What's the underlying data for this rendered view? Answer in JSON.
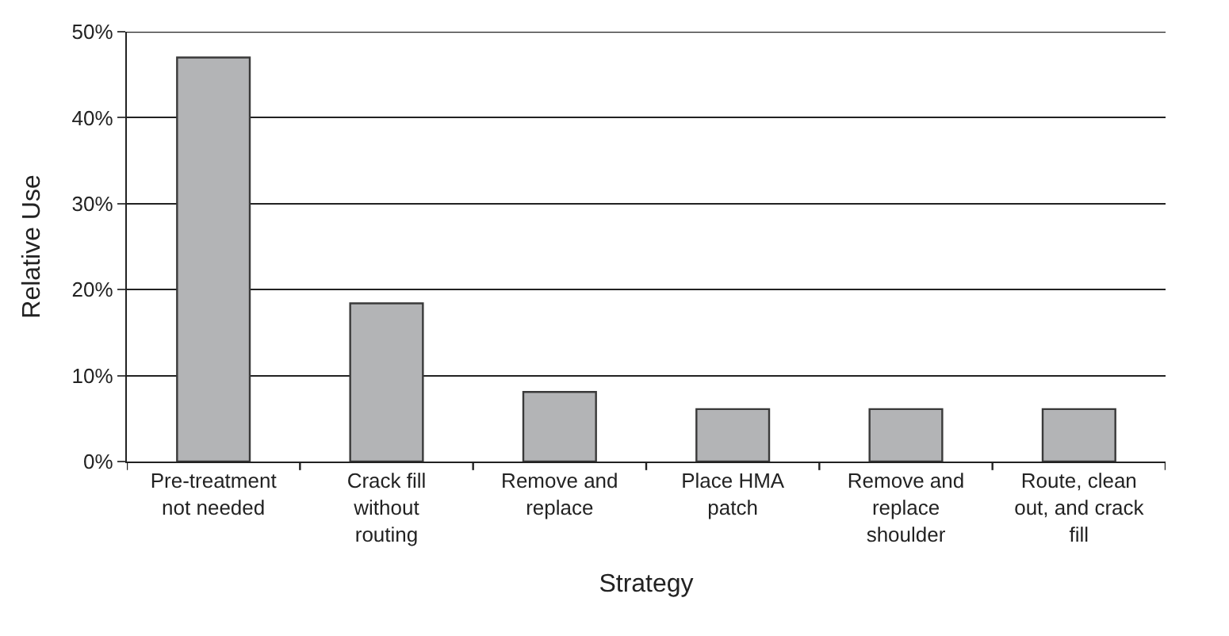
{
  "chart_data": {
    "type": "bar",
    "xlabel": "Strategy",
    "ylabel": "Relative Use",
    "categories": [
      "Pre-treatment not needed",
      "Crack fill without routing",
      "Remove and replace",
      "Place HMA patch",
      "Remove and replace shoulder",
      "Route, clean out, and crack fill"
    ],
    "values": [
      47,
      18.4,
      8.1,
      6.1,
      6.1,
      6.1
    ],
    "color": "#b3b4b6",
    "ylim": [
      0,
      50
    ],
    "yticks": [
      {
        "value": 0,
        "label": "0%"
      },
      {
        "value": 10,
        "label": "10%"
      },
      {
        "value": 20,
        "label": "20%"
      },
      {
        "value": 30,
        "label": "30%"
      },
      {
        "value": 40,
        "label": "40%"
      },
      {
        "value": 50,
        "label": "50%"
      }
    ],
    "grid": "y"
  }
}
